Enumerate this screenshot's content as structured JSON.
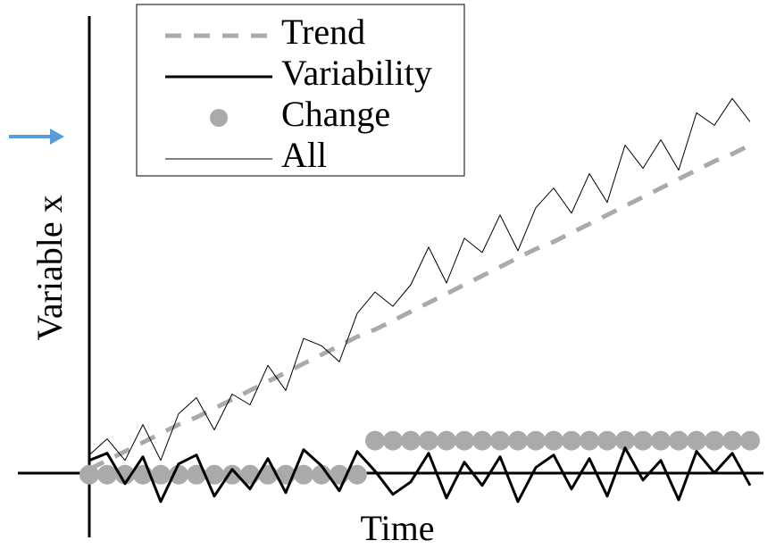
{
  "chart_data": {
    "type": "line",
    "xlabel": "Time",
    "ylabel": "Variable x",
    "xlim": [
      -4,
      37.75
    ],
    "ylim": [
      -3.5,
      25.6
    ],
    "legend": "upper left",
    "x": [
      0,
      1,
      2,
      3,
      4,
      5,
      6,
      7,
      8,
      9,
      10,
      11,
      12,
      13,
      14,
      15,
      16,
      17,
      18,
      19,
      20,
      21,
      22,
      23,
      24,
      25,
      26,
      27,
      28,
      29,
      30,
      31,
      32,
      33,
      34,
      35,
      36,
      37
    ],
    "series": [
      {
        "name": "Trend",
        "color": "#aaaaaa",
        "linestyle": "dashed",
        "linewidth": 5,
        "values": [
          0.3,
          0.8,
          1.3,
          1.8,
          2.3,
          2.8,
          3.2,
          3.7,
          4.2,
          4.7,
          5.2,
          5.7,
          6.2,
          6.7,
          7.2,
          7.7,
          8.1,
          8.6,
          9.1,
          9.6,
          10.1,
          10.6,
          11.1,
          11.6,
          12.1,
          12.6,
          13.0,
          13.5,
          14.0,
          14.5,
          15.0,
          15.5,
          16.0,
          16.5,
          17.0,
          17.5,
          17.9,
          18.4
        ]
      },
      {
        "name": "Variability",
        "color": "#000000",
        "linestyle": "solid",
        "linewidth": 3,
        "values": [
          0.8,
          1.2,
          -0.5,
          1.0,
          -1.5,
          0.6,
          1.1,
          -1.2,
          0.3,
          -0.8,
          0.9,
          -1.0,
          1.4,
          0.5,
          -0.9,
          1.3,
          0.2,
          -1.1,
          -0.4,
          1.2,
          -1.3,
          0.7,
          -0.6,
          1.0,
          -1.5,
          0.4,
          1.1,
          -0.8,
          0.9,
          -1.2,
          1.5,
          -0.3,
          0.8,
          -1.4,
          1.3,
          0.1,
          1.2,
          -0.6
        ]
      },
      {
        "name": "Change",
        "color": "#aaaaaa",
        "linestyle": "none",
        "marker": "o",
        "values": [
          0,
          0,
          0,
          0,
          0,
          0,
          0,
          0,
          0,
          0,
          0,
          0,
          0,
          0,
          0,
          0,
          1.9,
          1.9,
          1.9,
          1.9,
          1.9,
          1.9,
          1.9,
          1.9,
          1.9,
          1.9,
          1.9,
          1.9,
          1.9,
          1.9,
          1.9,
          1.9,
          1.9,
          1.9,
          1.9,
          1.9,
          1.9,
          1.9
        ]
      },
      {
        "name": "All",
        "color": "#000000",
        "linestyle": "solid",
        "linewidth": 1,
        "values": [
          1.1,
          2.0,
          0.8,
          2.8,
          0.8,
          3.4,
          4.3,
          2.5,
          4.5,
          3.9,
          6.1,
          4.7,
          7.6,
          7.2,
          6.3,
          9.0,
          10.2,
          9.4,
          10.6,
          12.7,
          10.7,
          13.2,
          12.4,
          14.5,
          12.5,
          14.9,
          16.0,
          14.6,
          16.8,
          15.2,
          18.4,
          17.1,
          18.7,
          17.0,
          20.2,
          19.5,
          21.0,
          19.7
        ]
      }
    ]
  }
}
